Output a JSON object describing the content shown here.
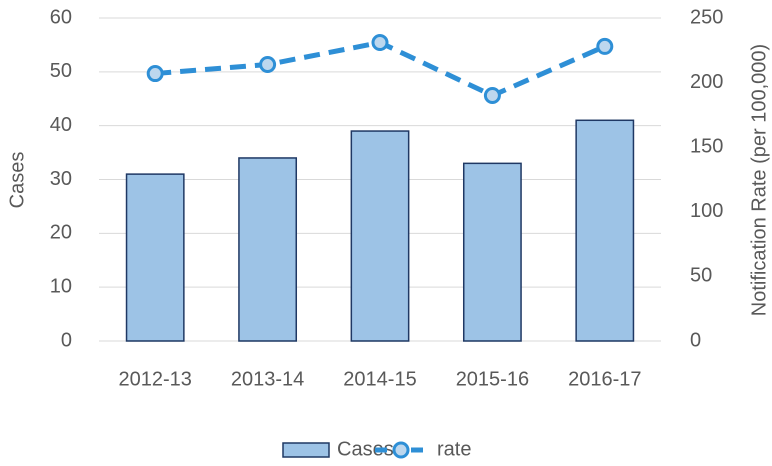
{
  "chart_data": {
    "type": "bar",
    "categories": [
      "2012-13",
      "2013-14",
      "2014-15",
      "2015-16",
      "2016-17"
    ],
    "series": [
      {
        "name": "Cases",
        "type": "bar",
        "color": "#9dc3e6",
        "edge_color": "#1f3864",
        "values": [
          31,
          34,
          39,
          33,
          41
        ]
      },
      {
        "name": "rate",
        "type": "line",
        "axis": "y2",
        "color": "#2e8fd6",
        "marker_fill": "#bdd7ee",
        "values": [
          207,
          214,
          231,
          190,
          228
        ]
      }
    ],
    "ylabel": "Cases",
    "y2label": "Notification Rate (per 100,000)",
    "ylim": [
      0,
      60
    ],
    "yticks": [
      0,
      10,
      20,
      30,
      40,
      50,
      60
    ],
    "y2lim": [
      0,
      250
    ],
    "y2ticks": [
      0,
      50,
      100,
      150,
      200,
      250
    ],
    "grid": true,
    "legend": "bottom"
  }
}
